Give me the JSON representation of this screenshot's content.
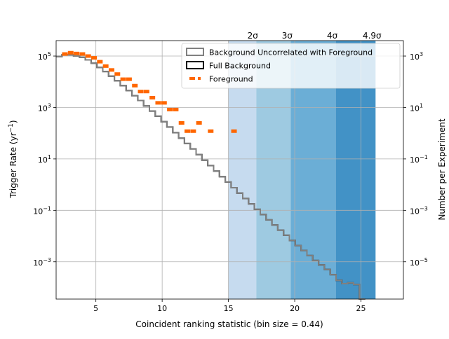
{
  "colors": {
    "band_light": "#c6dbef",
    "band_2": "#9ecae1",
    "band_3": "#6baed6",
    "band_4": "#4292c6",
    "full_background": "#000000",
    "uncorrelated_background": "#808080",
    "foreground": "#ff6600",
    "grid": "#b0b0b0"
  },
  "chart_data": {
    "type": "step histogram",
    "xlabel": "Coincident ranking statistic (bin size = 0.44)",
    "ylabel": "Trigger Rate (yr$^{-1}$)",
    "ylabel_base": "Trigger Rate (yr",
    "ylabel_sup": "−1",
    "ylabel_tail": ")",
    "y2label": "Number per Experiment",
    "xlim": [
      2.0,
      28.2
    ],
    "ylim_log10": [
      -4.45,
      5.6
    ],
    "y2_offset_log10": -2,
    "x_ticks": [
      5,
      10,
      15,
      20,
      25
    ],
    "x_tick_labels": [
      "5",
      "10",
      "15",
      "20",
      "25"
    ],
    "y_ticks_log10": [
      -3,
      -1,
      1,
      3,
      5
    ],
    "y_tick_labels": [
      {
        "base": "10",
        "exp": "−3"
      },
      {
        "base": "10",
        "exp": "−1"
      },
      {
        "base": "10",
        "exp": "1"
      },
      {
        "base": "10",
        "exp": "3"
      },
      {
        "base": "10",
        "exp": "5"
      }
    ],
    "y2_ticks_log10": [
      -5,
      -3,
      -1,
      1,
      3
    ],
    "y2_tick_labels": [
      {
        "base": "10",
        "exp": "−5"
      },
      {
        "base": "10",
        "exp": "−3"
      },
      {
        "base": "10",
        "exp": "−1"
      },
      {
        "base": "10",
        "exp": "1"
      },
      {
        "base": "10",
        "exp": "3"
      }
    ],
    "grid": true,
    "legend_position": "top-right",
    "legend": [
      {
        "label": "Background Uncorrelated with Foreground",
        "style": "gray-box"
      },
      {
        "label": "Full Background",
        "style": "black-box"
      },
      {
        "label": "Foreground",
        "style": "orange-dash"
      }
    ],
    "significance_bands": [
      {
        "from": 15.0,
        "to": 17.1,
        "label": ""
      },
      {
        "from": 17.1,
        "to": 19.7,
        "label": "2σ",
        "label_x": 17.1
      },
      {
        "from": 19.7,
        "to": 23.1,
        "label": "3σ",
        "label_x": 19.7
      },
      {
        "from": 23.1,
        "to": 26.1,
        "label": "4σ",
        "label_x": 23.1
      }
    ],
    "top_labels": [
      {
        "text": "2σ",
        "x": 17.1
      },
      {
        "text": "3σ",
        "x": 19.7
      },
      {
        "text": "4σ",
        "x": 23.1
      },
      {
        "text": "4.9σ",
        "x": 26.1
      }
    ],
    "bin_width": 0.44,
    "bin_start": 2.0,
    "full_background_log10": [
      4.98,
      5.05,
      5.05,
      5.0,
      4.95,
      4.85,
      4.72,
      4.56,
      4.4,
      4.22,
      4.04,
      3.85,
      3.66,
      3.46,
      3.27,
      3.06,
      2.86,
      2.66,
      2.45,
      2.24,
      2.02,
      1.81,
      1.6,
      1.39,
      1.17,
      0.95,
      0.74,
      0.53,
      0.31,
      0.1,
      -0.12,
      -0.33,
      -0.54,
      -0.75,
      -0.96,
      -1.16,
      -1.37,
      -1.57,
      -1.77,
      -1.97,
      -2.17,
      -2.37,
      -2.56,
      -2.76,
      -2.95,
      -3.12,
      -3.3,
      -3.5,
      -3.72,
      -3.85,
      -3.82,
      -3.88,
      -4.45
    ],
    "uncorrelated_background_log10": [
      4.98,
      5.05,
      5.05,
      5.0,
      4.95,
      4.85,
      4.72,
      4.56,
      4.4,
      4.22,
      4.04,
      3.85,
      3.66,
      3.46,
      3.27,
      3.06,
      2.86,
      2.66,
      2.45,
      2.24,
      2.02,
      1.81,
      1.6,
      1.39,
      1.17,
      0.95,
      0.74,
      0.53,
      0.31,
      0.1,
      -0.12,
      -0.33,
      -0.54,
      -0.75,
      -0.96,
      -1.16,
      -1.37,
      -1.57,
      -1.77,
      -1.97,
      -2.17,
      -2.37,
      -2.56,
      -2.76,
      -2.95,
      -3.12,
      -3.3,
      -3.5,
      -3.72,
      -3.85,
      -3.82,
      -3.88,
      -4.45
    ],
    "foreground": [
      {
        "x": 2.44,
        "log10": 5.08
      },
      {
        "x": 2.88,
        "log10": 5.13
      },
      {
        "x": 3.32,
        "log10": 5.1
      },
      {
        "x": 3.76,
        "log10": 5.08
      },
      {
        "x": 4.2,
        "log10": 5.0
      },
      {
        "x": 4.64,
        "log10": 4.93
      },
      {
        "x": 5.08,
        "log10": 4.78
      },
      {
        "x": 5.52,
        "log10": 4.61
      },
      {
        "x": 5.96,
        "log10": 4.46
      },
      {
        "x": 6.4,
        "log10": 4.3
      },
      {
        "x": 6.84,
        "log10": 4.1
      },
      {
        "x": 7.28,
        "log10": 4.1
      },
      {
        "x": 7.72,
        "log10": 3.85
      },
      {
        "x": 8.16,
        "log10": 3.62
      },
      {
        "x": 8.6,
        "log10": 3.62
      },
      {
        "x": 9.04,
        "log10": 3.38
      },
      {
        "x": 9.48,
        "log10": 3.18
      },
      {
        "x": 9.92,
        "log10": 3.18
      },
      {
        "x": 10.36,
        "log10": 2.92
      },
      {
        "x": 10.8,
        "log10": 2.92
      },
      {
        "x": 11.24,
        "log10": 2.4
      },
      {
        "x": 11.68,
        "log10": 2.08
      },
      {
        "x": 12.12,
        "log10": 2.08
      },
      {
        "x": 12.56,
        "log10": 2.4
      },
      {
        "x": 13.44,
        "log10": 2.08
      },
      {
        "x": 15.2,
        "log10": 2.08
      }
    ]
  }
}
